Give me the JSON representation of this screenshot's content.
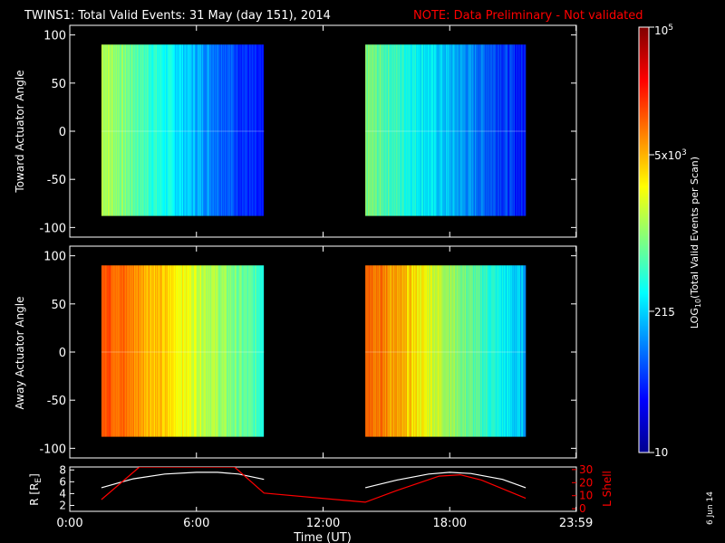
{
  "title": "TWINS1: Total Valid Events: 31 May (day 151), 2014",
  "note": "NOTE: Data Preliminary - Not validated",
  "date_stamp": "6 Jun 14",
  "colors": {
    "note": "#ff0000",
    "rshell": "#ff0000",
    "r_line": "#ffffff",
    "axis": "#ffffff",
    "background": "#000000"
  },
  "chart_data": [
    {
      "type": "heatmap",
      "ylabel": "Toward Actuator Angle",
      "ylim": [
        -110,
        110
      ],
      "yticks": [
        100,
        50,
        0,
        -50,
        -100
      ],
      "x_hours": [
        0,
        24
      ],
      "blocks": [
        {
          "x_start": 1.5,
          "x_end": 9.2,
          "y_range": [
            -88,
            90
          ],
          "palette_start": 0.56,
          "palette_end": 0.12
        },
        {
          "x_start": 14.0,
          "x_end": 21.6,
          "y_range": [
            -88,
            90
          ],
          "palette_start": 0.5,
          "palette_end": 0.14
        }
      ]
    },
    {
      "type": "heatmap",
      "ylabel": "Away Actuator Angle",
      "ylim": [
        -110,
        110
      ],
      "yticks": [
        100,
        50,
        0,
        -50,
        -100
      ],
      "x_hours": [
        0,
        24
      ],
      "blocks": [
        {
          "x_start": 1.5,
          "x_end": 9.2,
          "y_range": [
            -88,
            90
          ],
          "palette_start": 0.82,
          "palette_end": 0.42
        },
        {
          "x_start": 14.0,
          "x_end": 21.6,
          "y_range": [
            -88,
            90
          ],
          "palette_start": 0.8,
          "palette_end": 0.3
        }
      ]
    },
    {
      "type": "line",
      "ylabel_left": "R [R",
      "ylabel_left_sub": "E",
      "ylabel_left_end": "]",
      "ylabel_right": "L Shell",
      "yticks_left": [
        8,
        6,
        4,
        2
      ],
      "ylim_left": [
        1,
        8.5
      ],
      "yticks_right": [
        30,
        20,
        10,
        0
      ],
      "ylim_right": [
        -2,
        32
      ],
      "xticks": [
        {
          "h": 0,
          "label": "0:00"
        },
        {
          "h": 6,
          "label": "6:00"
        },
        {
          "h": 12,
          "label": "12:00"
        },
        {
          "h": 18,
          "label": "18:00"
        },
        {
          "h": 23.983,
          "label": "23:59"
        }
      ],
      "xlabel": "Time (UT)",
      "series": [
        {
          "color": "#ffffff",
          "x": [
            1.5,
            3.0,
            4.5,
            6.0,
            7.0,
            8.0,
            9.2,
            14.0,
            15.5,
            17.0,
            18.0,
            19.0,
            20.5,
            21.6
          ],
          "y": [
            5.0,
            6.5,
            7.3,
            7.6,
            7.6,
            7.3,
            6.4,
            5.0,
            6.3,
            7.3,
            7.6,
            7.4,
            6.4,
            5.0
          ]
        },
        {
          "color": "#ff0000",
          "x": [
            1.5,
            3.3,
            7.8,
            9.2,
            14.0,
            15.5,
            17.5,
            18.5,
            19.5,
            21.6
          ],
          "y": [
            7,
            32,
            32,
            12,
            5,
            14,
            25,
            26,
            22,
            8
          ]
        }
      ]
    },
    {
      "type": "colorbar",
      "ylabel_prefix": "LOG",
      "ylabel_sub": "10",
      "ylabel_suffix": "(Total Valid Events per Scan)",
      "ticks": [
        {
          "frac": 1.0,
          "base": "10",
          "sup": "5"
        },
        {
          "frac": 0.7,
          "base": "5x10",
          "sup": "3"
        },
        {
          "frac": 0.332,
          "base": "215",
          "sup": ""
        },
        {
          "frac": 0.0,
          "base": "10",
          "sup": ""
        }
      ]
    }
  ]
}
